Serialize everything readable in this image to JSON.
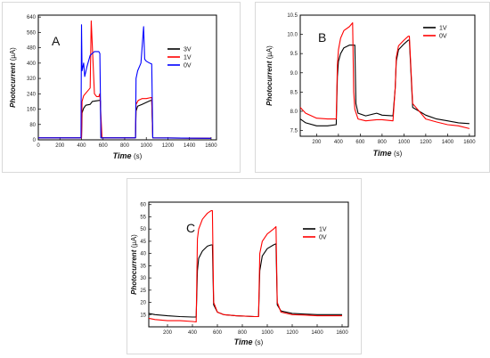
{
  "chart_data": [
    {
      "type": "line",
      "panel_label": "A",
      "xlabel": "Time",
      "xunit": "(s)",
      "ylabel": "Photocurrent",
      "yunit": "(µA)",
      "xlim": [
        0,
        1650
      ],
      "ylim": [
        0,
        650
      ],
      "xticks": [
        0,
        200,
        400,
        600,
        800,
        1000,
        1200,
        1400,
        1600
      ],
      "yticks": [
        0,
        80,
        160,
        240,
        320,
        400,
        480,
        560,
        640
      ],
      "legend_position": "top-right",
      "grid": false,
      "series": [
        {
          "name": "3V",
          "color": "#000000",
          "x": [
            0,
            400,
            405,
            420,
            440,
            480,
            500,
            560,
            575,
            580,
            900,
            905,
            920,
            960,
            1000,
            1040,
            1050,
            1060,
            1600
          ],
          "y": [
            10,
            10,
            140,
            165,
            180,
            185,
            200,
            205,
            205,
            10,
            10,
            150,
            175,
            185,
            195,
            205,
            205,
            10,
            8
          ]
        },
        {
          "name": "1V",
          "color": "#ff0000",
          "x": [
            0,
            400,
            405,
            420,
            450,
            480,
            490,
            520,
            540,
            560,
            570,
            590,
            900,
            905,
            925,
            960,
            1000,
            1040,
            1050,
            1060,
            1600
          ],
          "y": [
            10,
            10,
            200,
            230,
            250,
            270,
            620,
            240,
            225,
            225,
            240,
            10,
            10,
            185,
            205,
            215,
            215,
            220,
            220,
            10,
            8
          ]
        },
        {
          "name": "0V",
          "color": "#0000ff",
          "x": [
            0,
            395,
            400,
            405,
            420,
            430,
            450,
            480,
            520,
            560,
            570,
            580,
            900,
            905,
            920,
            950,
            975,
            985,
            1000,
            1030,
            1050,
            1060,
            1600
          ],
          "y": [
            10,
            10,
            600,
            360,
            400,
            330,
            380,
            440,
            460,
            460,
            450,
            10,
            10,
            320,
            360,
            400,
            590,
            420,
            410,
            400,
            395,
            10,
            8
          ]
        }
      ]
    },
    {
      "type": "line",
      "panel_label": "B",
      "xlabel": "Time",
      "xunit": "(s)",
      "ylabel": "Photocurrent",
      "yunit": "(µA)",
      "xlim": [
        50,
        1650
      ],
      "ylim": [
        7.35,
        10.5
      ],
      "xticks": [
        200,
        400,
        600,
        800,
        1000,
        1200,
        1400,
        1600
      ],
      "yticks": [
        7.5,
        8.0,
        8.5,
        9.0,
        9.5,
        10.0,
        10.5
      ],
      "legend_position": "top-right",
      "grid": false,
      "series": [
        {
          "name": "1V",
          "color": "#000000",
          "x": [
            50,
            100,
            200,
            300,
            380,
            390,
            400,
            420,
            450,
            500,
            550,
            560,
            580,
            650,
            750,
            800,
            900,
            920,
            930,
            950,
            1000,
            1040,
            1050,
            1080,
            1200,
            1300,
            1400,
            1500,
            1600
          ],
          "y": [
            7.8,
            7.7,
            7.62,
            7.62,
            7.65,
            8.9,
            9.3,
            9.5,
            9.65,
            9.72,
            9.72,
            8.2,
            7.95,
            7.88,
            7.95,
            7.9,
            7.88,
            8.6,
            9.3,
            9.6,
            9.75,
            9.85,
            9.85,
            8.1,
            7.9,
            7.8,
            7.75,
            7.7,
            7.68
          ]
        },
        {
          "name": "0V",
          "color": "#ff0000",
          "x": [
            50,
            100,
            200,
            300,
            380,
            390,
            400,
            420,
            450,
            500,
            530,
            540,
            550,
            580,
            650,
            750,
            800,
            900,
            920,
            930,
            950,
            1000,
            1040,
            1050,
            1080,
            1200,
            1300,
            1400,
            1500,
            1600
          ],
          "y": [
            8.1,
            7.95,
            7.82,
            7.8,
            7.8,
            9.2,
            9.6,
            9.9,
            10.1,
            10.2,
            10.3,
            8.5,
            8.05,
            7.8,
            7.75,
            7.78,
            7.78,
            7.75,
            8.6,
            9.4,
            9.7,
            9.85,
            9.95,
            9.95,
            8.2,
            7.8,
            7.72,
            7.65,
            7.62,
            7.55
          ]
        }
      ]
    },
    {
      "type": "line",
      "panel_label": "C",
      "xlabel": "Time",
      "xunit": "(s)",
      "ylabel": "Photocurrent",
      "yunit": "(µA)",
      "xlim": [
        50,
        1650
      ],
      "ylim": [
        10,
        61
      ],
      "xticks": [
        200,
        400,
        600,
        800,
        1000,
        1200,
        1400,
        1600
      ],
      "yticks": [
        15,
        20,
        25,
        30,
        35,
        40,
        45,
        50,
        55,
        60
      ],
      "legend_position": "top-right",
      "grid": false,
      "series": [
        {
          "name": "1V",
          "color": "#000000",
          "x": [
            50,
            100,
            200,
            300,
            400,
            430,
            440,
            450,
            480,
            520,
            550,
            560,
            570,
            600,
            650,
            750,
            900,
            930,
            940,
            960,
            1000,
            1050,
            1070,
            1080,
            1110,
            1200,
            1300,
            1400,
            1600
          ],
          "y": [
            15.5,
            15,
            14.5,
            14.2,
            14,
            14,
            33,
            38,
            41,
            43,
            43.5,
            43.5,
            19,
            16,
            15,
            14.5,
            14.2,
            14.2,
            33,
            39,
            42,
            43.5,
            44,
            19,
            16.5,
            15.5,
            15.2,
            15,
            15
          ]
        },
        {
          "name": "0V",
          "color": "#ff0000",
          "x": [
            50,
            100,
            200,
            300,
            400,
            430,
            440,
            450,
            480,
            520,
            550,
            560,
            570,
            600,
            650,
            750,
            900,
            930,
            940,
            960,
            1000,
            1050,
            1070,
            1080,
            1110,
            1200,
            1300,
            1400,
            1600
          ],
          "y": [
            13.5,
            13,
            12.5,
            12.5,
            12.2,
            12,
            46,
            50,
            54,
            56.5,
            57.5,
            57.5,
            20,
            16,
            15,
            14.5,
            14.2,
            14.2,
            40,
            45,
            48,
            50,
            51,
            20,
            16,
            15,
            14.8,
            14.5,
            14.5
          ]
        }
      ]
    }
  ]
}
